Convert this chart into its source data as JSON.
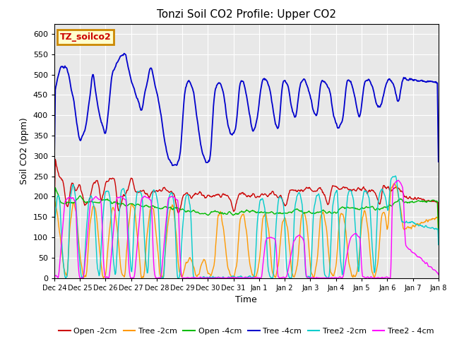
{
  "title": "Tonzi Soil CO2 Profile: Upper CO2",
  "ylabel": "Soil CO2 (ppm)",
  "xlabel": "Time",
  "legend_label": "TZ_soilco2",
  "series_labels": [
    "Open -2cm",
    "Tree -2cm",
    "Open -4cm",
    "Tree -4cm",
    "Tree2 -2cm",
    "Tree2 - 4cm"
  ],
  "series_colors": [
    "#cc0000",
    "#ff9900",
    "#00bb00",
    "#0000cc",
    "#00cccc",
    "#ff00ff"
  ],
  "ylim": [
    0,
    625
  ],
  "yticks": [
    0,
    50,
    100,
    150,
    200,
    250,
    300,
    350,
    400,
    450,
    500,
    550,
    600
  ],
  "xtick_labels": [
    "Dec 24",
    "Dec 25",
    "Dec 26",
    "Dec 27",
    "Dec 28",
    "Dec 29",
    "Dec 30",
    "Dec 31",
    "Jan 1",
    "Jan 2",
    "Jan 3",
    "Jan 4",
    "Jan 5",
    "Jan 6",
    "Jan 7",
    "Jan 8"
  ],
  "n_days": 15,
  "n_pts_per_day": 48,
  "fig_bg": "#ffffff",
  "plot_bg": "#e8e8e8",
  "legend_box_facecolor": "#ffffcc",
  "legend_box_edgecolor": "#cc8800",
  "legend_label_color": "#cc0000",
  "grid_color": "#ffffff",
  "title_fontsize": 11,
  "label_fontsize": 9,
  "tick_fontsize": 8,
  "legend_fontsize": 8
}
